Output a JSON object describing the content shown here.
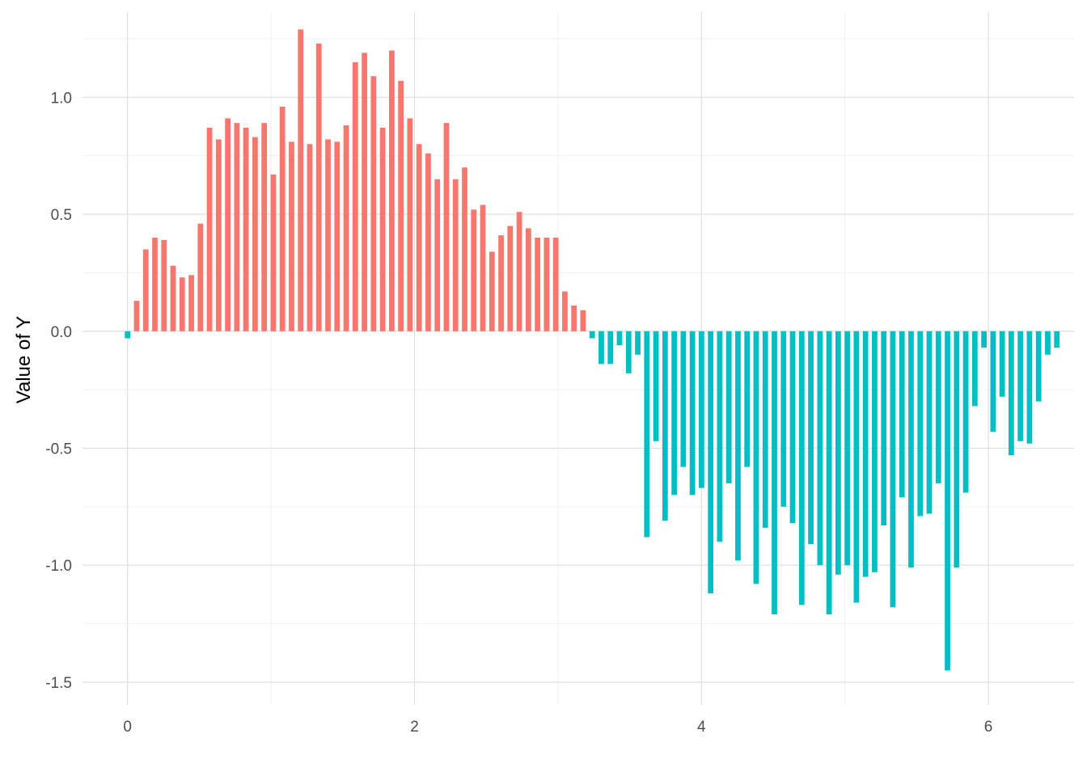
{
  "chart_data": {
    "type": "bar",
    "title": "",
    "xlabel": "",
    "ylabel": "Value of Y",
    "xlim": [
      -0.314,
      6.597
    ],
    "ylim": [
      -1.597,
      1.364
    ],
    "x_ticks": [
      0,
      2,
      4,
      6
    ],
    "x_tick_labels": [
      "0",
      "2",
      "4",
      "6"
    ],
    "y_ticks": [
      -1.5,
      -1.0,
      -0.5,
      0.0,
      0.5,
      1.0
    ],
    "y_tick_labels": [
      "-1.5",
      "-1.0",
      "-0.5",
      "0.0",
      "0.5",
      "1.0"
    ],
    "grid": true,
    "legend": "none",
    "x_step": 0.0635,
    "colors": {
      "positive": "#F8766D",
      "negative": "#00BFC4"
    },
    "values": [
      -0.03,
      0.13,
      0.35,
      0.4,
      0.39,
      0.28,
      0.23,
      0.24,
      0.46,
      0.87,
      0.82,
      0.91,
      0.89,
      0.87,
      0.83,
      0.89,
      0.67,
      0.96,
      0.81,
      1.29,
      0.8,
      1.23,
      0.82,
      0.81,
      0.88,
      1.15,
      1.19,
      1.09,
      0.87,
      1.2,
      1.07,
      0.91,
      0.8,
      0.76,
      0.65,
      0.89,
      0.65,
      0.7,
      0.52,
      0.54,
      0.34,
      0.41,
      0.45,
      0.51,
      0.44,
      0.4,
      0.4,
      0.4,
      0.17,
      0.11,
      0.09,
      -0.03,
      -0.14,
      -0.14,
      -0.06,
      -0.18,
      -0.1,
      -0.88,
      -0.47,
      -0.81,
      -0.7,
      -0.58,
      -0.7,
      -0.67,
      -1.12,
      -0.9,
      -0.65,
      -0.98,
      -0.58,
      -1.08,
      -0.84,
      -1.21,
      -0.75,
      -0.82,
      -1.17,
      -0.91,
      -1.0,
      -1.21,
      -1.04,
      -1.0,
      -1.16,
      -1.05,
      -1.03,
      -0.83,
      -1.18,
      -0.71,
      -1.01,
      -0.79,
      -0.78,
      -0.65,
      -1.45,
      -1.01,
      -0.69,
      -0.32,
      -0.07,
      -0.43,
      -0.28,
      -0.53,
      -0.47,
      -0.48,
      -0.3,
      -0.1,
      -0.07
    ]
  }
}
